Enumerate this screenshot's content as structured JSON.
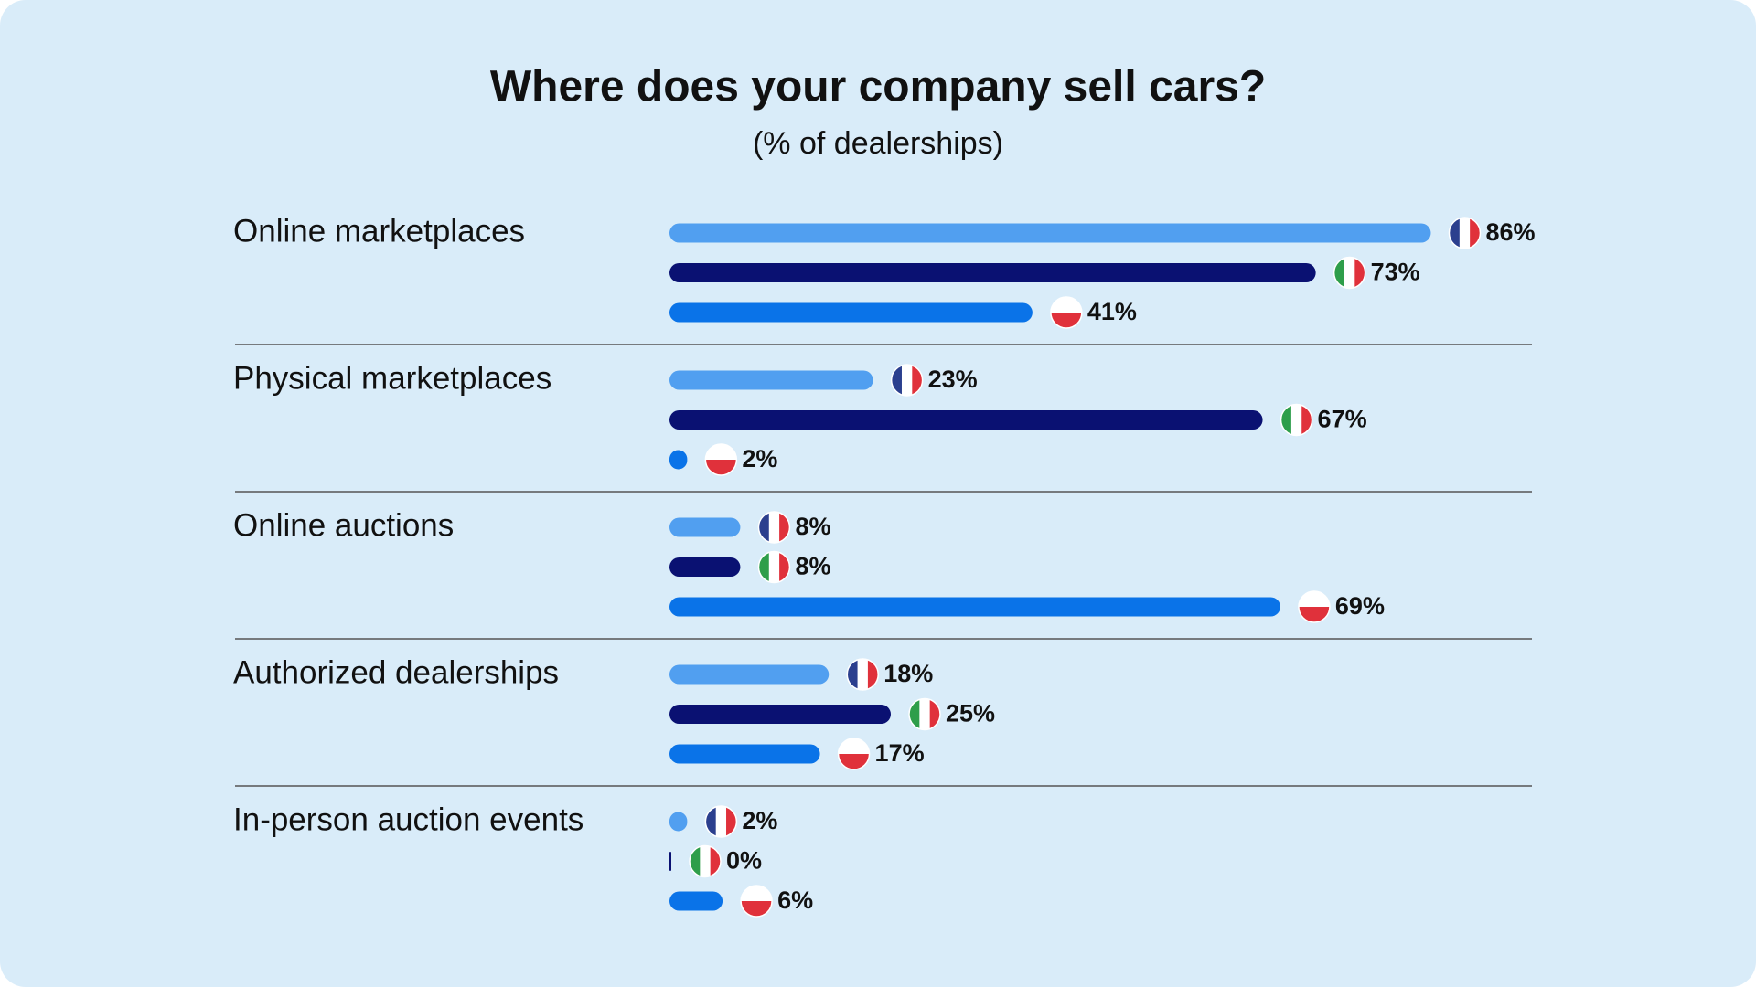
{
  "chart_data": {
    "type": "hbar-grouped",
    "title": "Where does your company sell cars?",
    "subtitle": "(% of dealerships)",
    "categories": [
      "Online marketplaces",
      "Physical marketplaces",
      "Online auctions",
      "Authorized dealerships",
      "In-person auction events"
    ],
    "series": [
      {
        "color": "#519ff0",
        "values": [
          86,
          23,
          8,
          18,
          2
        ],
        "value_labels": [
          "86%",
          "23%",
          "8%",
          "18%",
          "2%"
        ]
      },
      {
        "color": "#0a1172",
        "values": [
          73,
          67,
          8,
          25,
          0
        ],
        "value_labels": [
          "73%",
          "67%",
          "8%",
          "25%",
          "0%"
        ]
      },
      {
        "color": "#0a73e8",
        "values": [
          41,
          2,
          69,
          17,
          6
        ],
        "value_labels": [
          "41%",
          "2%",
          "69%",
          "17%",
          "6%"
        ]
      }
    ]
  }
}
